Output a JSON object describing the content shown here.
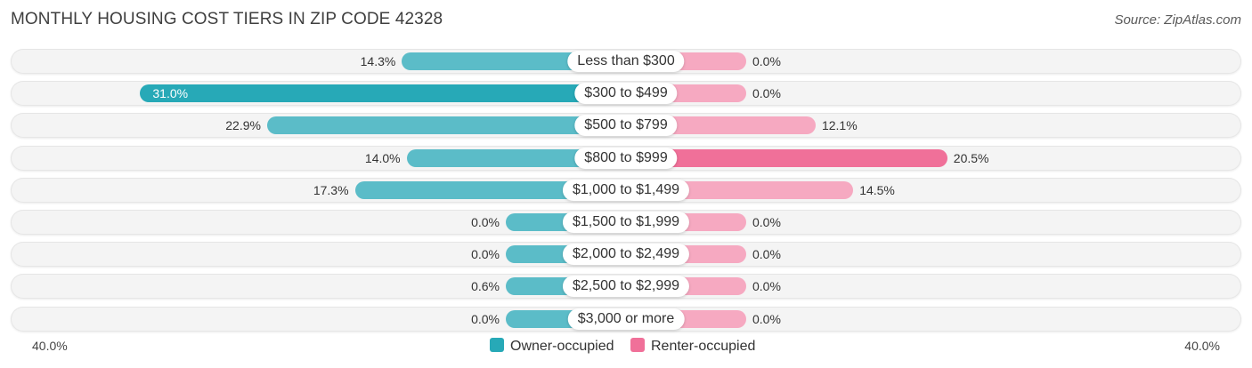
{
  "header": {
    "title": "MONTHLY HOUSING COST TIERS IN ZIP CODE 42328",
    "source": "Source: ZipAtlas.com"
  },
  "axis": {
    "left_label": "40.0%",
    "right_label": "40.0%"
  },
  "legend": {
    "owner_label": "Owner-occupied",
    "renter_label": "Renter-occupied"
  },
  "colors": {
    "owner": "#5bbcc8",
    "owner_strong": "#27a9b7",
    "renter": "#f6a9c1",
    "renter_strong": "#f07099",
    "row_background": "#f4f4f4"
  },
  "chart_data": {
    "type": "bar",
    "orientation": "horizontal-diverging",
    "title": "MONTHLY HOUSING COST TIERS IN ZIP CODE 42328",
    "categories": [
      "Less than $300",
      "$300 to $499",
      "$500 to $799",
      "$800 to $999",
      "$1,000 to $1,499",
      "$1,500 to $1,999",
      "$2,000 to $2,499",
      "$2,500 to $2,999",
      "$3,000 or more"
    ],
    "series": [
      {
        "name": "Owner-occupied",
        "values": [
          14.3,
          31.0,
          22.9,
          14.0,
          17.3,
          0.0,
          0.0,
          0.6,
          0.0
        ],
        "labels": [
          "14.3%",
          "31.0%",
          "22.9%",
          "14.0%",
          "17.3%",
          "0.0%",
          "0.0%",
          "0.6%",
          "0.0%"
        ]
      },
      {
        "name": "Renter-occupied",
        "values": [
          0.0,
          0.0,
          12.1,
          20.5,
          14.5,
          0.0,
          0.0,
          0.0,
          0.0
        ],
        "labels": [
          "0.0%",
          "0.0%",
          "12.1%",
          "20.5%",
          "14.5%",
          "0.0%",
          "0.0%",
          "0.0%",
          "0.0%"
        ]
      }
    ],
    "xlim": [
      -40,
      40
    ],
    "legend_position": "bottom-center",
    "grid": false
  }
}
